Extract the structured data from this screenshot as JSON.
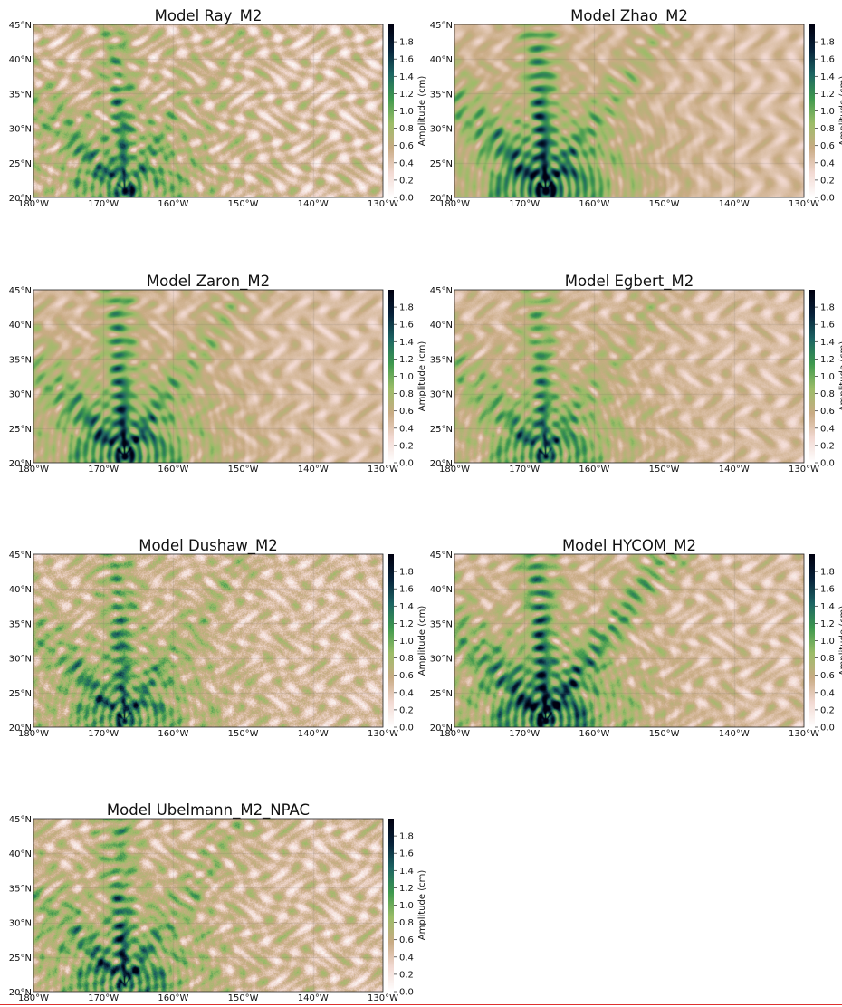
{
  "figure": {
    "colorbar_label": "Amplitude (cm)",
    "colormap": [
      "#ffffff",
      "#f2d9d2",
      "#c9ab84",
      "#9cbd68",
      "#3f9a4e",
      "#1d6563",
      "#07223a",
      "#000010"
    ],
    "lon_ticks": [
      "180°W",
      "170°W",
      "160°W",
      "150°W",
      "140°W",
      "130°W"
    ],
    "lat_ticks": [
      "20°N",
      "25°N",
      "30°N",
      "35°N",
      "40°N",
      "45°N"
    ],
    "colorbar_ticks": [
      "0.0",
      "0.2",
      "0.4",
      "0.6",
      "0.8",
      "1.0",
      "1.2",
      "1.4",
      "1.6",
      "1.8"
    ],
    "lon_range": [
      -180,
      -130
    ],
    "lat_range": [
      20,
      45
    ],
    "amplitude_range": [
      0,
      2.0
    ]
  },
  "panels": [
    {
      "title": "Model Ray_M2",
      "noise": 0.85,
      "beam": 0.9,
      "ne_beam": 0.3,
      "speckle": 0.3
    },
    {
      "title": "Model Zhao_M2",
      "noise": 0.2,
      "beam": 1.25,
      "ne_beam": 0.55,
      "speckle": 0.05
    },
    {
      "title": "Model Zaron_M2",
      "noise": 0.3,
      "beam": 1.15,
      "ne_beam": 0.6,
      "speckle": 0.08
    },
    {
      "title": "Model Egbert_M2",
      "noise": 0.35,
      "beam": 0.95,
      "ne_beam": 0.4,
      "speckle": 0.15
    },
    {
      "title": "Model Dushaw_M2",
      "noise": 0.65,
      "beam": 1.0,
      "ne_beam": 0.45,
      "speckle": 0.55
    },
    {
      "title": "Model HYCOM_M2",
      "noise": 0.55,
      "beam": 1.3,
      "ne_beam": 1.0,
      "speckle": 0.25
    },
    {
      "title": "Model Ubelmann_M2_NPAC",
      "noise": 0.75,
      "beam": 1.05,
      "ne_beam": 0.6,
      "speckle": 0.45
    }
  ]
}
